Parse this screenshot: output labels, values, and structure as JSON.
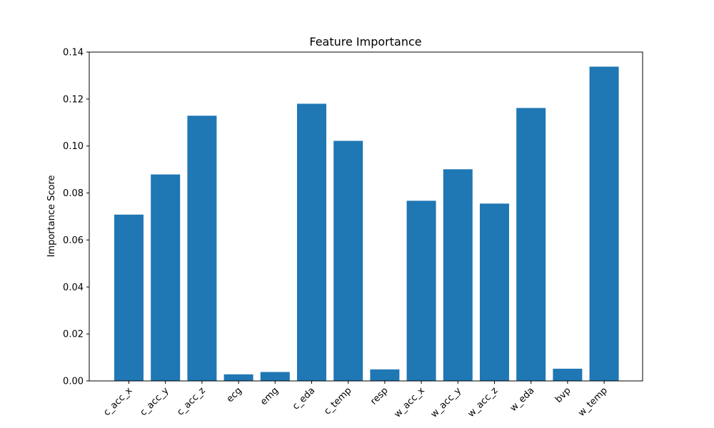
{
  "chart_data": {
    "type": "bar",
    "title": "Feature Importance",
    "xlabel": "",
    "ylabel": "Importance Score",
    "categories": [
      "c_acc_x",
      "c_acc_y",
      "c_acc_z",
      "ecg",
      "emg",
      "c_eda",
      "c_temp",
      "resp",
      "w_acc_x",
      "w_acc_y",
      "w_acc_z",
      "w_eda",
      "bvp",
      "w_temp"
    ],
    "values": [
      0.0708,
      0.0879,
      0.1129,
      0.0028,
      0.0038,
      0.118,
      0.1022,
      0.0049,
      0.0767,
      0.0901,
      0.0755,
      0.1162,
      0.0052,
      0.1338
    ],
    "ylim": [
      0,
      0.14
    ],
    "yticks": [
      "0.00",
      "0.02",
      "0.04",
      "0.06",
      "0.08",
      "0.10",
      "0.12",
      "0.14"
    ],
    "grid": false,
    "bar_color": "#1f77b4"
  }
}
